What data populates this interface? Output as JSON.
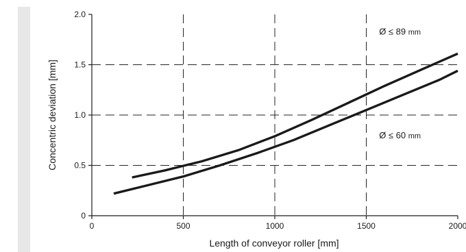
{
  "chart_data": {
    "type": "line",
    "title": "",
    "xlabel": "Length of conveyor roller [mm]",
    "ylabel": "Concentric deviation [mm]",
    "xlim": [
      0,
      2000
    ],
    "ylim": [
      0,
      2.0
    ],
    "x_ticks": [
      "0",
      "500",
      "1000",
      "1500",
      "2000"
    ],
    "y_ticks": [
      "0",
      "0.5",
      "1.0",
      "1.5",
      "2.0"
    ],
    "grid": "dashed",
    "series": [
      {
        "name": "Ø ≤ 89 mm",
        "x": [
          220,
          400,
          600,
          800,
          1000,
          1200,
          1400,
          1600,
          1800,
          2000
        ],
        "y": [
          0.38,
          0.45,
          0.54,
          0.65,
          0.79,
          0.95,
          1.12,
          1.29,
          1.45,
          1.61
        ]
      },
      {
        "name": "Ø ≤ 60 mm",
        "x": [
          120,
          300,
          500,
          700,
          900,
          1100,
          1300,
          1500,
          1700,
          1900,
          2000
        ],
        "y": [
          0.22,
          0.3,
          0.39,
          0.5,
          0.62,
          0.75,
          0.9,
          1.05,
          1.2,
          1.35,
          1.44
        ]
      }
    ],
    "annotations": [
      {
        "text": "Ø ≤ 89 mm",
        "x": 1570,
        "y": 1.8
      },
      {
        "text": "Ø ≤ 60 mm",
        "x": 1570,
        "y": 0.77
      }
    ],
    "colors": {
      "line": "#1a1a1a",
      "grid": "#222222",
      "strip": "#e7e7e7"
    }
  }
}
